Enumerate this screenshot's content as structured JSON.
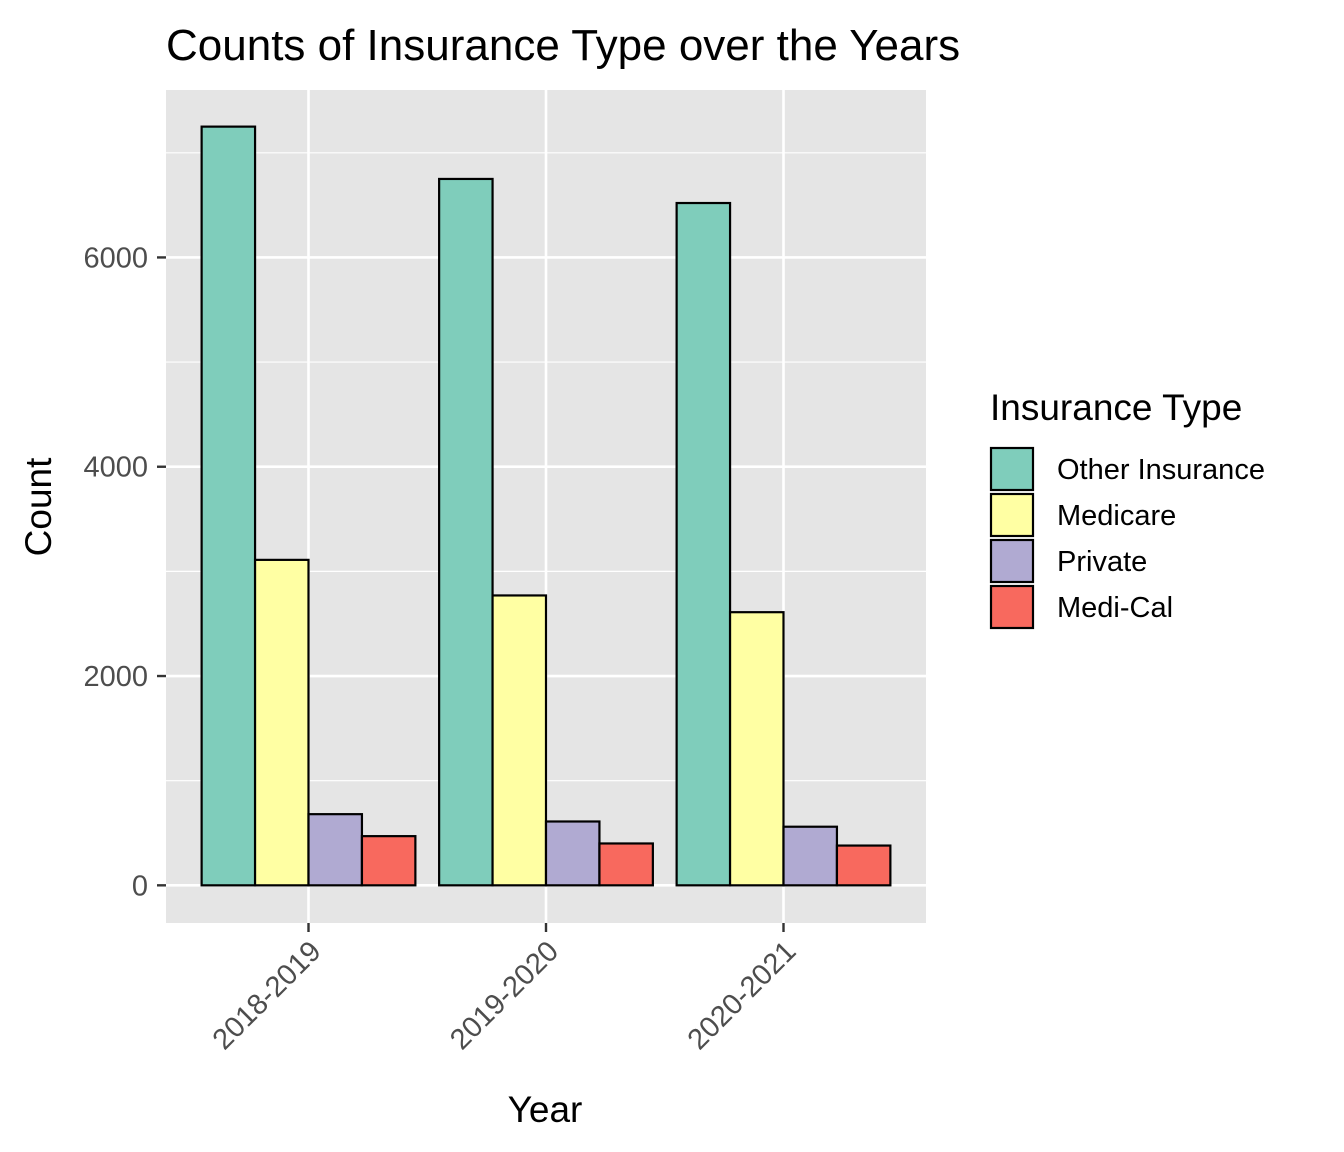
{
  "chart_data": {
    "type": "bar",
    "title": "Counts of Insurance Type over the Years",
    "xlabel": "Year",
    "ylabel": "Count",
    "categories": [
      "2018-2019",
      "2019-2020",
      "2020-2021"
    ],
    "series": [
      {
        "name": "Other Insurance",
        "color": "#7FCDBB",
        "values": [
          7250,
          6750,
          6520
        ]
      },
      {
        "name": "Medicare",
        "color": "#FFFFA3",
        "values": [
          3110,
          2770,
          2610
        ]
      },
      {
        "name": "Private",
        "color": "#B0AAD2",
        "values": [
          680,
          610,
          560
        ]
      },
      {
        "name": "Medi-Cal",
        "color": "#F8695E",
        "values": [
          470,
          400,
          380
        ]
      }
    ],
    "ylim": [
      -360,
      7600
    ],
    "yticks": [
      0,
      2000,
      4000,
      6000
    ],
    "ytick_labels": [
      "0",
      "2000",
      "4000",
      "6000"
    ],
    "legend": {
      "title": "Insurance Type",
      "position": "right"
    },
    "grid": true,
    "panel_background": "#E5E5E5",
    "x_tick_rotation": 45
  }
}
